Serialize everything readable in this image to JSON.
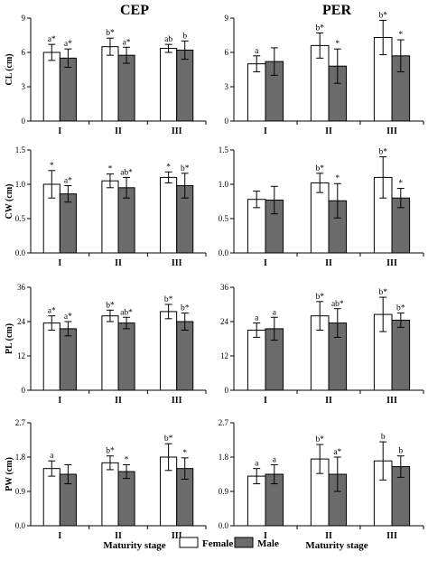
{
  "column_titles": [
    "CEP",
    "PER"
  ],
  "legend": {
    "female_label": "Female",
    "male_label": "Male",
    "female_color": "#ffffff",
    "male_color": "#6b6b6b"
  },
  "xlabels": [
    "Maturity stage",
    "Maturity stage"
  ],
  "chart_data": [
    {
      "type": "bar",
      "panel": "CEP-CL",
      "ylabel": "CL (cm)",
      "categories": [
        "I",
        "II",
        "III"
      ],
      "ylim": [
        0,
        9
      ],
      "yticks": [
        0,
        3,
        6,
        9
      ],
      "ytick_labels": [
        "0",
        "3",
        "6",
        "9"
      ],
      "series": [
        {
          "name": "Female",
          "values": [
            6.0,
            6.5,
            6.35
          ],
          "errors": [
            0.7,
            0.75,
            0.35
          ],
          "annotations": [
            "a*",
            "b*",
            "ab"
          ]
        },
        {
          "name": "Male",
          "values": [
            5.5,
            5.75,
            6.2
          ],
          "errors": [
            0.8,
            0.7,
            0.8
          ],
          "annotations": [
            "a*",
            "a*",
            "b"
          ]
        }
      ]
    },
    {
      "type": "bar",
      "panel": "PER-CL",
      "ylabel": "",
      "categories": [
        "I",
        "II",
        "III"
      ],
      "ylim": [
        0,
        9
      ],
      "yticks": [
        0,
        3,
        6,
        9
      ],
      "ytick_labels": [
        "0",
        "3",
        "6",
        "9"
      ],
      "series": [
        {
          "name": "Female",
          "values": [
            5.0,
            6.6,
            7.3
          ],
          "errors": [
            0.7,
            1.1,
            1.5
          ],
          "annotations": [
            "a",
            "b*",
            "b*"
          ]
        },
        {
          "name": "Male",
          "values": [
            5.2,
            4.8,
            5.7
          ],
          "errors": [
            1.2,
            1.5,
            1.4
          ],
          "annotations": [
            "",
            "*",
            "*"
          ]
        }
      ]
    },
    {
      "type": "bar",
      "panel": "CEP-CW",
      "ylabel": "CW (cm)",
      "categories": [
        "I",
        "II",
        "III"
      ],
      "ylim": [
        0,
        1.5
      ],
      "yticks": [
        0,
        0.5,
        1.0,
        1.5
      ],
      "ytick_labels": [
        "0.0",
        "0.5",
        "1.0",
        "1.5"
      ],
      "series": [
        {
          "name": "Female",
          "values": [
            1.0,
            1.05,
            1.1
          ],
          "errors": [
            0.2,
            0.1,
            0.08
          ],
          "annotations": [
            "*",
            "*",
            "*"
          ]
        },
        {
          "name": "Male",
          "values": [
            0.86,
            0.95,
            0.98
          ],
          "errors": [
            0.12,
            0.15,
            0.18
          ],
          "annotations": [
            "a*",
            "ab*",
            "b*"
          ]
        }
      ]
    },
    {
      "type": "bar",
      "panel": "PER-CW",
      "ylabel": "",
      "categories": [
        "I",
        "II",
        "III"
      ],
      "ylim": [
        0,
        1.5
      ],
      "yticks": [
        0,
        0.5,
        1.0,
        1.5
      ],
      "ytick_labels": [
        "0.0",
        "0.5",
        "1.0",
        "1.5"
      ],
      "series": [
        {
          "name": "Female",
          "values": [
            0.78,
            1.02,
            1.1
          ],
          "errors": [
            0.12,
            0.14,
            0.3
          ],
          "annotations": [
            "",
            "b*",
            "b*"
          ]
        },
        {
          "name": "Male",
          "values": [
            0.77,
            0.76,
            0.8
          ],
          "errors": [
            0.2,
            0.25,
            0.14
          ],
          "annotations": [
            "",
            "*",
            "*"
          ]
        }
      ]
    },
    {
      "type": "bar",
      "panel": "CEP-PL",
      "ylabel": "PL (cm)",
      "categories": [
        "I",
        "II",
        "III"
      ],
      "ylim": [
        0,
        36
      ],
      "yticks": [
        0,
        12,
        24,
        36
      ],
      "ytick_labels": [
        "0",
        "12",
        "24",
        "36"
      ],
      "series": [
        {
          "name": "Female",
          "values": [
            23.5,
            26.0,
            27.5
          ],
          "errors": [
            2.5,
            2.0,
            2.5
          ],
          "annotations": [
            "a*",
            "b*",
            "b*"
          ]
        },
        {
          "name": "Male",
          "values": [
            21.5,
            23.5,
            24.0
          ],
          "errors": [
            2.5,
            2.0,
            3.0
          ],
          "annotations": [
            "a*",
            "ab*",
            "b*"
          ]
        }
      ]
    },
    {
      "type": "bar",
      "panel": "PER-PL",
      "ylabel": "",
      "categories": [
        "I",
        "II",
        "III"
      ],
      "ylim": [
        0,
        36
      ],
      "yticks": [
        0,
        12,
        24,
        36
      ],
      "ytick_labels": [
        "0",
        "12",
        "24",
        "36"
      ],
      "series": [
        {
          "name": "Female",
          "values": [
            21.0,
            26.0,
            26.5
          ],
          "errors": [
            2.5,
            5.0,
            6.0
          ],
          "annotations": [
            "a",
            "b*",
            "b*"
          ]
        },
        {
          "name": "Male",
          "values": [
            21.5,
            23.5,
            24.5
          ],
          "errors": [
            4.0,
            5.0,
            2.5
          ],
          "annotations": [
            "a",
            "ab*",
            "b*"
          ]
        }
      ]
    },
    {
      "type": "bar",
      "panel": "CEP-PW",
      "ylabel": "PW (cm)",
      "categories": [
        "I",
        "II",
        "III"
      ],
      "ylim": [
        0,
        2.7
      ],
      "yticks": [
        0,
        0.9,
        1.8,
        2.7
      ],
      "ytick_labels": [
        "0.0",
        "0.9",
        "1.8",
        "2.7"
      ],
      "series": [
        {
          "name": "Female",
          "values": [
            1.5,
            1.65,
            1.8
          ],
          "errors": [
            0.2,
            0.18,
            0.35
          ],
          "annotations": [
            "a",
            "b*",
            "b*"
          ]
        },
        {
          "name": "Male",
          "values": [
            1.35,
            1.42,
            1.5
          ],
          "errors": [
            0.25,
            0.18,
            0.28
          ],
          "annotations": [
            "",
            "*",
            "*"
          ]
        }
      ]
    },
    {
      "type": "bar",
      "panel": "PER-PW",
      "ylabel": "",
      "categories": [
        "I",
        "II",
        "III"
      ],
      "ylim": [
        0,
        2.7
      ],
      "yticks": [
        0,
        0.9,
        1.8,
        2.7
      ],
      "ytick_labels": [
        "0.0",
        "0.9",
        "1.8",
        "2.7"
      ],
      "series": [
        {
          "name": "Female",
          "values": [
            1.3,
            1.75,
            1.7
          ],
          "errors": [
            0.2,
            0.38,
            0.5
          ],
          "annotations": [
            "a",
            "b*",
            "b"
          ]
        },
        {
          "name": "Male",
          "values": [
            1.35,
            1.35,
            1.55
          ],
          "errors": [
            0.25,
            0.45,
            0.28
          ],
          "annotations": [
            "a",
            "a*",
            "b"
          ]
        }
      ]
    }
  ]
}
